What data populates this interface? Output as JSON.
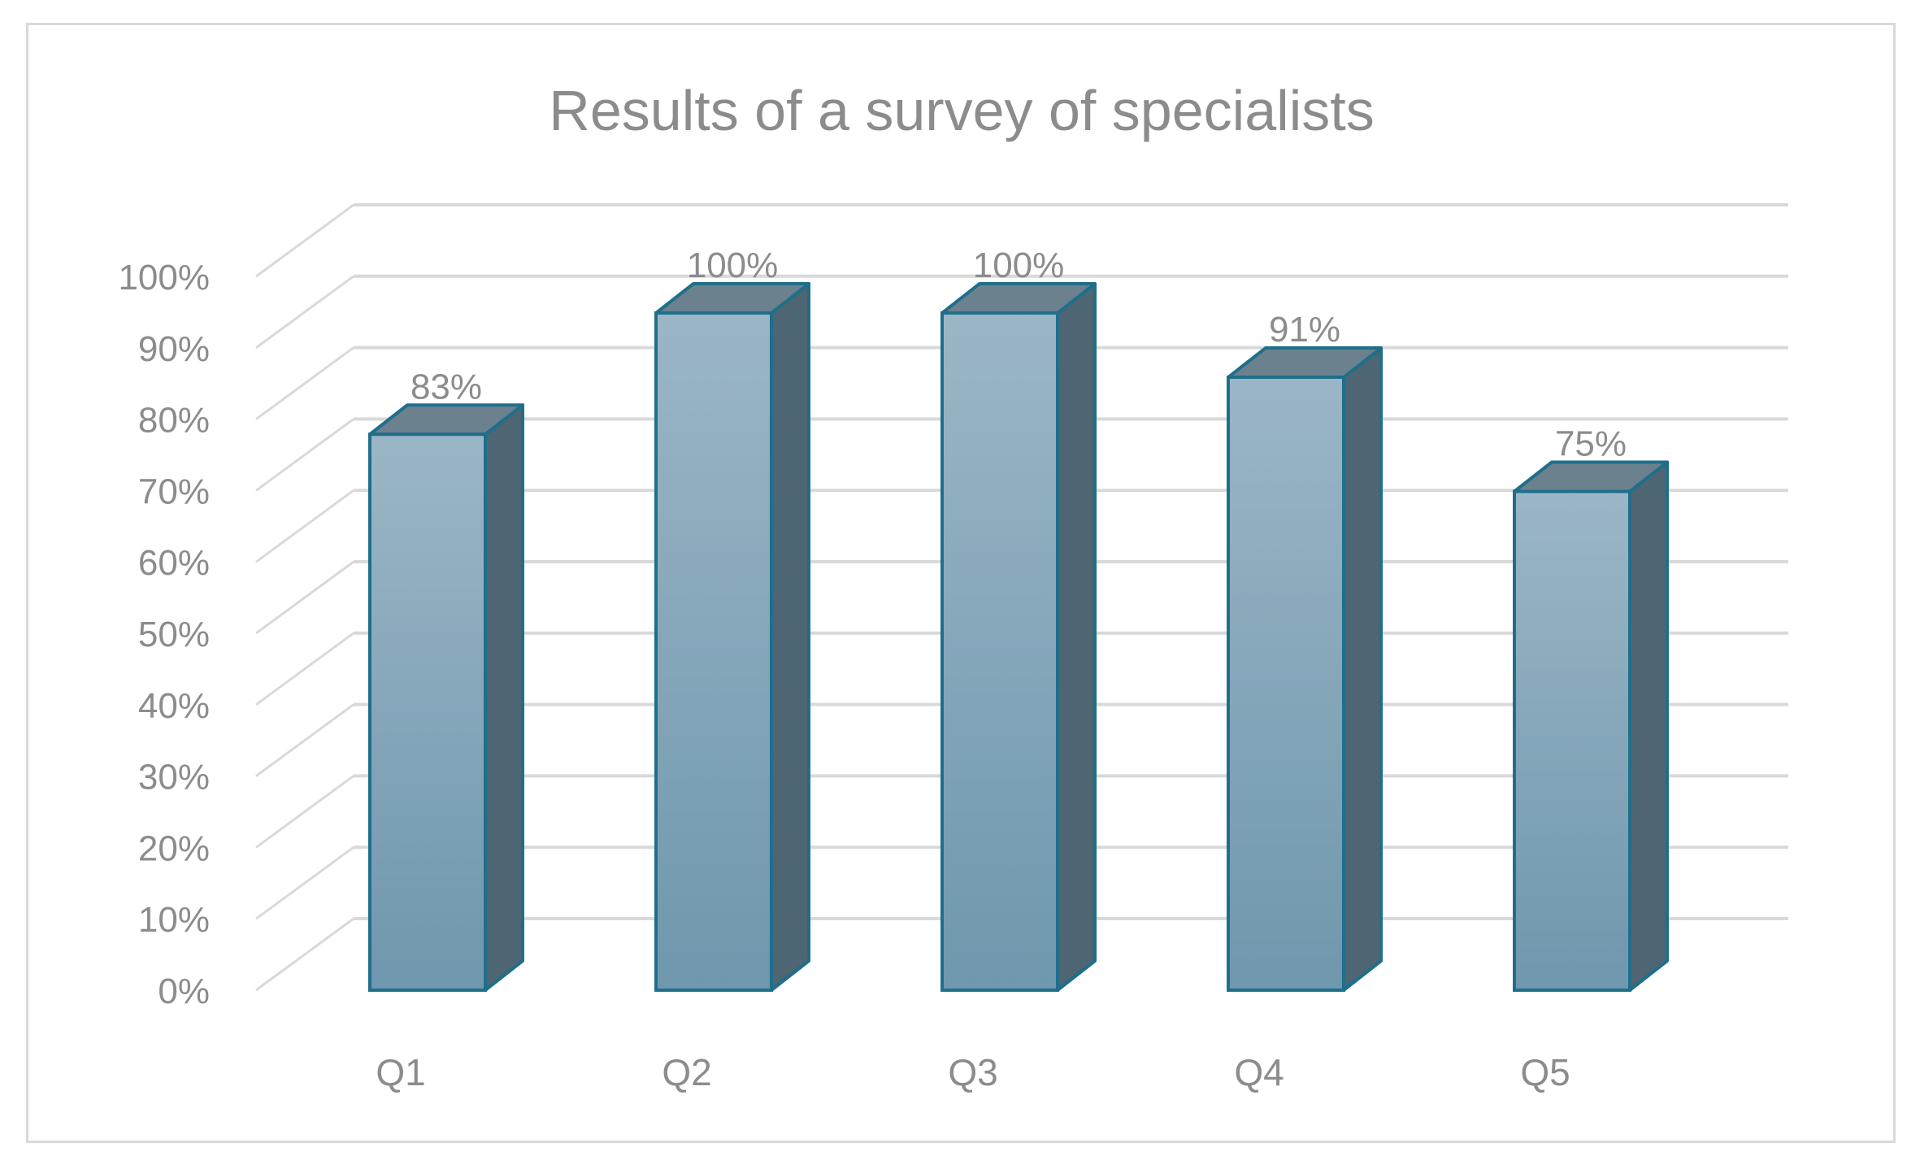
{
  "chart_data": {
    "type": "bar",
    "title": "Results of a survey of specialists",
    "categories": [
      "Q1",
      "Q2",
      "Q3",
      "Q4",
      "Q5"
    ],
    "values": [
      83,
      100,
      100,
      91,
      75
    ],
    "data_labels": [
      "83%",
      "100%",
      "100%",
      "91%",
      "75%"
    ],
    "y_ticks": [
      "0%",
      "10%",
      "20%",
      "30%",
      "40%",
      "50%",
      "60%",
      "70%",
      "80%",
      "90%",
      "100%"
    ],
    "ylim": [
      0,
      100
    ],
    "grid": true,
    "legend": "none",
    "three_d": true,
    "colors": {
      "bar_front_top": "#9bb6c6",
      "bar_front_bottom": "#6f97ad",
      "bar_side": "#4e6573",
      "bar_top": "#6b818e",
      "bar_outline": "#1f6f8b",
      "gridline": "#d9d9d9",
      "text": "#8c8c8c"
    }
  }
}
